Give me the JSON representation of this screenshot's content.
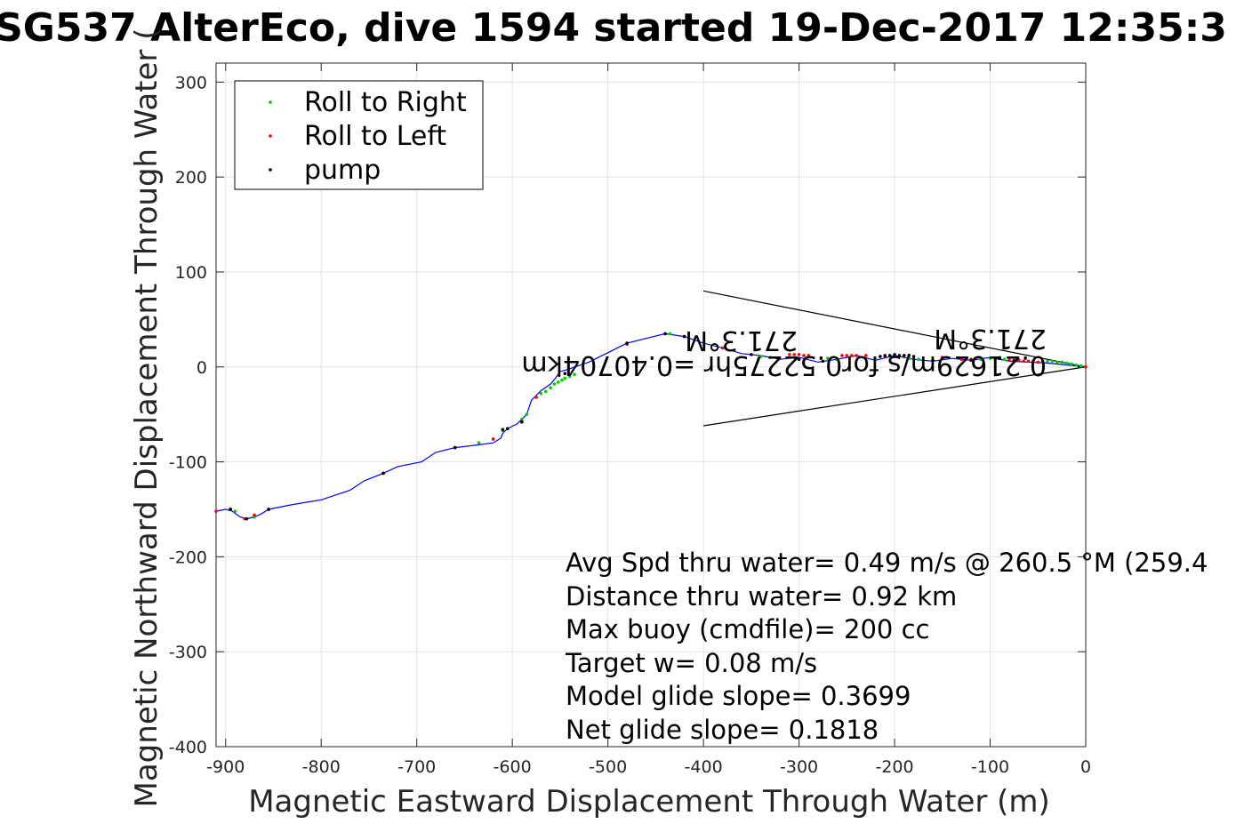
{
  "chart_data": {
    "type": "line",
    "title": "SG537 AlterEco, dive 1594 started 19-Dec-2017 12:35:3",
    "xlabel": "Magnetic Eastward Displacement Through Water (m)",
    "ylabel": "Magnetic Northward Displacement Through Water (",
    "xlim": [
      -910,
      0
    ],
    "ylim": [
      -400,
      320
    ],
    "xticks": [
      -900,
      -800,
      -700,
      -600,
      -500,
      -400,
      -300,
      -200,
      -100,
      0
    ],
    "yticks": [
      -400,
      -300,
      -200,
      -100,
      0,
      100,
      200,
      300
    ],
    "grid": true,
    "legend_position": "top-left",
    "legend": [
      {
        "label": "Roll to Right",
        "color": "#00cc00"
      },
      {
        "label": "Roll to Left",
        "color": "#ff0000"
      },
      {
        "label": "pump",
        "color": "#000000"
      }
    ],
    "track": {
      "color": "#0000ff",
      "x": [
        0,
        -20,
        -40,
        -60,
        -80,
        -100,
        -120,
        -140,
        -160,
        -180,
        -200,
        -220,
        -240,
        -260,
        -280,
        -300,
        -320,
        -340,
        -360,
        -380,
        -400,
        -420,
        -440,
        -460,
        -480,
        -500,
        -520,
        -540,
        -550,
        -555,
        -560,
        -570,
        -580,
        -585,
        -595,
        -605,
        -610,
        -612,
        -620,
        -635,
        -660,
        -680,
        -695,
        -720,
        -735,
        -755,
        -770,
        -800,
        -830,
        -855,
        -863,
        -870,
        -878,
        -885,
        -893,
        -900,
        -910
      ],
      "y": [
        0,
        2,
        4,
        5,
        6,
        10,
        7,
        9,
        6,
        8,
        12,
        7,
        12,
        8,
        5,
        10,
        8,
        12,
        14,
        20,
        25,
        32,
        35,
        30,
        25,
        15,
        5,
        -2,
        -5,
        -12,
        -18,
        -25,
        -35,
        -50,
        -60,
        -65,
        -70,
        -75,
        -80,
        -82,
        -85,
        -90,
        -100,
        -105,
        -112,
        -120,
        -130,
        -140,
        -145,
        -150,
        -155,
        -158,
        -160,
        -158,
        -152,
        -150,
        -152
      ]
    },
    "roll_right": {
      "x": [
        -5,
        -10,
        -15,
        -20,
        -25,
        -30,
        -35,
        -40,
        -85,
        -90,
        -95,
        -100,
        -110,
        -175,
        -185,
        -220,
        -260,
        -270,
        -330,
        -340,
        -435,
        -480,
        -535,
        -540,
        -545,
        -548,
        -552,
        -556,
        -560,
        -565,
        -570,
        -585,
        -590,
        -605,
        -610,
        -635,
        -870,
        -890
      ],
      "y": [
        1,
        2,
        3,
        4,
        5,
        5,
        6,
        6,
        8,
        10,
        9,
        9,
        8,
        8,
        9,
        8,
        8,
        9,
        10,
        11,
        35,
        25,
        -8,
        -10,
        -12,
        -14,
        -16,
        -18,
        -22,
        -26,
        -28,
        -50,
        -55,
        -65,
        -67,
        -80,
        -158,
        -152
      ]
    },
    "roll_left": {
      "x": [
        0,
        -45,
        -50,
        -55,
        -60,
        -65,
        -70,
        -75,
        -80,
        -120,
        -130,
        -150,
        -210,
        -230,
        -240,
        -245,
        -250,
        -255,
        -290,
        -295,
        -300,
        -305,
        -310,
        -380,
        -420,
        -480,
        -575,
        -590,
        -620,
        -660,
        -735,
        -855,
        -870,
        -880,
        -895,
        -910
      ],
      "y": [
        0,
        5,
        5,
        6,
        6,
        6,
        7,
        7,
        7,
        8,
        8,
        10,
        11,
        12,
        12,
        12,
        12,
        12,
        12,
        12,
        13,
        13,
        13,
        20,
        32,
        24,
        -32,
        -58,
        -76,
        -85,
        -112,
        -150,
        -156,
        -160,
        -150,
        -152
      ]
    },
    "pump": {
      "x": [
        -75,
        -90,
        -120,
        -160,
        -180,
        -185,
        -190,
        -195,
        -200,
        -205,
        -210,
        -215,
        -275,
        -300,
        -350,
        -420,
        -440,
        -480,
        -545,
        -590,
        -605,
        -610,
        -660,
        -735,
        -855,
        -878,
        -895
      ],
      "y": [
        6,
        9,
        7,
        7,
        11,
        12,
        12,
        12,
        13,
        12,
        12,
        11,
        6,
        8,
        13,
        32,
        35,
        25,
        -7,
        -58,
        -65,
        -66,
        -85,
        -112,
        -150,
        -160,
        -150
      ]
    },
    "wedge_lines": [
      {
        "x": [
          0,
          -400
        ],
        "y": [
          0,
          80
        ]
      },
      {
        "x": [
          0,
          -400
        ],
        "y": [
          0,
          -62
        ]
      }
    ],
    "flipped_labels": {
      "line1": "0.21629m/s for0.52275hr =0.40704km",
      "line2a": "271.3°M",
      "line2b": "271.3°M"
    },
    "annotations": [
      "Avg Spd thru water=  0.49 m/s @ 260.5 °M (259.4",
      "Distance thru water=  0.92 km",
      "Max buoy (cmdfile)= 200 cc",
      "Target w= 0.08 m/s",
      "Model glide slope= 0.3699",
      "Net glide slope= 0.1818"
    ]
  }
}
